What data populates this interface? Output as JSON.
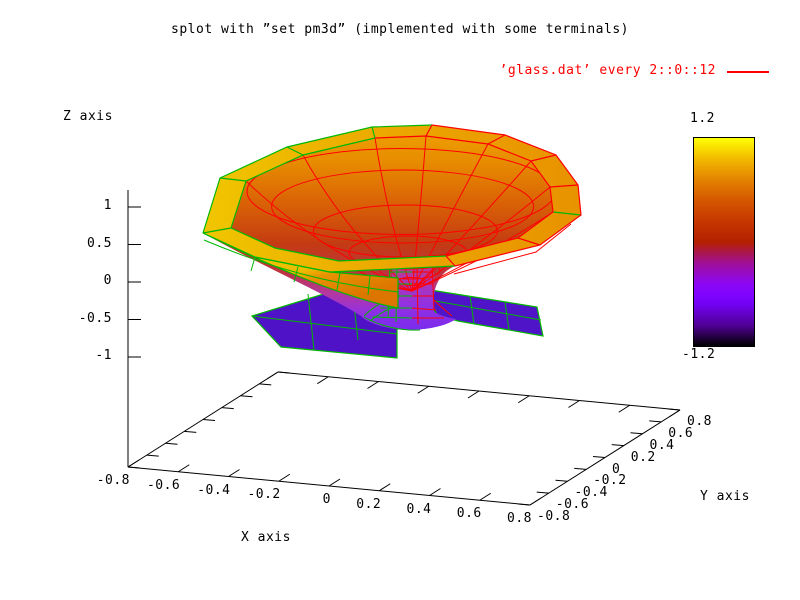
{
  "title": "splot with ”set pm3d” (implemented with some terminals)",
  "legend": {
    "label": "’glass.dat’ every 2::0::12",
    "color": "#ff0000"
  },
  "axes": {
    "x": {
      "label": "X axis",
      "ticks": [
        "-0.8",
        "-0.6",
        "-0.4",
        "-0.2",
        "0",
        "0.2",
        "0.4",
        "0.6",
        "0.8"
      ]
    },
    "y": {
      "label": "Y axis",
      "ticks": [
        "-0.8",
        "-0.6",
        "-0.4",
        "-0.2",
        "0",
        "0.2",
        "0.4",
        "0.6",
        "0.8"
      ]
    },
    "z": {
      "label": "Z axis",
      "ticks": [
        "1",
        "0.5",
        "0",
        "-0.5",
        "-1"
      ]
    }
  },
  "colorbar": {
    "max_label": "1.2",
    "min_label": "-1.2",
    "stops": [
      {
        "p": 0.0,
        "c": "#000000"
      },
      {
        "p": 0.1,
        "c": "#510096"
      },
      {
        "p": 0.2,
        "c": "#7202F3"
      },
      {
        "p": 0.25,
        "c": "#8004FF"
      },
      {
        "p": 0.3,
        "c": "#8C07F3"
      },
      {
        "p": 0.4,
        "c": "#A11096"
      },
      {
        "p": 0.5,
        "c": "#B42000"
      },
      {
        "p": 0.6,
        "c": "#C63700"
      },
      {
        "p": 0.7,
        "c": "#D55700"
      },
      {
        "p": 0.8,
        "c": "#E48300"
      },
      {
        "p": 0.9,
        "c": "#F2BA00"
      },
      {
        "p": 1.0,
        "c": "#FFFF00"
      }
    ]
  },
  "chart_data": {
    "type": "surface-3d",
    "title": "splot with ”set pm3d” (implemented with some terminals)",
    "series": [
      {
        "name": "’glass.dat’ every 2::0::12",
        "style": "pm3d color-mapped surface with hidden3d mesh lines",
        "mesh_top_color": "#ff0000",
        "mesh_underside_color": "#00b800"
      }
    ],
    "x_axis": {
      "label": "X axis",
      "ticks": [
        -0.8,
        -0.6,
        -0.4,
        -0.2,
        0,
        0.2,
        0.4,
        0.6,
        0.8
      ],
      "range": [
        -0.8,
        0.8
      ]
    },
    "y_axis": {
      "label": "Y axis",
      "ticks": [
        -0.8,
        -0.6,
        -0.4,
        -0.2,
        0,
        0.2,
        0.4,
        0.6,
        0.8
      ],
      "range": [
        -0.8,
        0.8
      ]
    },
    "z_axis": {
      "label": "Z axis",
      "ticks": [
        1,
        0.5,
        0,
        -0.5,
        -1
      ],
      "range": [
        -1.2,
        1.2
      ]
    },
    "colorbar": {
      "range": [
        -1.2,
        1.2
      ],
      "palette": "gnuplot default pm3d palette: black > violet > blue-purple > magenta > dark red > orange > yellow"
    },
    "legend_position": "top-right",
    "grid": false,
    "surface_description": "Goblet/glass-shaped surface of revolution (glass.dat): wide open bowl with rim near z=1.1..1.2 (yellow/orange), inner bowl funnels down through red to magenta, narrow stem in violet, flat dark-violet base wings near z=-1.2; near-side outer wall and base meshed in green (underside), far-side mesh in red."
  }
}
